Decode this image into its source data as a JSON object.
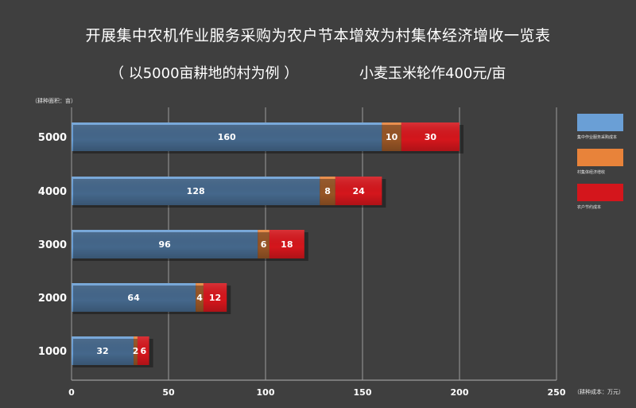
{
  "chart_data": {
    "type": "bar",
    "stacked": true,
    "orientation": "horizontal",
    "title": "开展集中农机作业服务采购为农户节本增效为村集体经济增收一览表",
    "subtitle": "（ 以5000亩耕地的村为例 ）",
    "note": "小麦玉米轮作400元/亩",
    "ylabel": "（耕种面积：亩）",
    "xlabel": "（耕种成本：万元）",
    "categories": [
      "5000",
      "4000",
      "3000",
      "2000",
      "1000"
    ],
    "xlim": [
      0,
      250
    ],
    "xticks": [
      0,
      50,
      100,
      150,
      200,
      250
    ],
    "series": [
      {
        "name": "集中作业服务采购成本",
        "color": "#6a9fd6",
        "values": [
          160,
          128,
          96,
          64,
          32
        ]
      },
      {
        "name": "村集体经济增收",
        "color": "#e8833a",
        "values": [
          10,
          8,
          6,
          4,
          2
        ]
      },
      {
        "name": "农户节约成本",
        "color": "#d4161c",
        "values": [
          30,
          24,
          18,
          12,
          6
        ]
      }
    ],
    "legend_position": "right"
  }
}
